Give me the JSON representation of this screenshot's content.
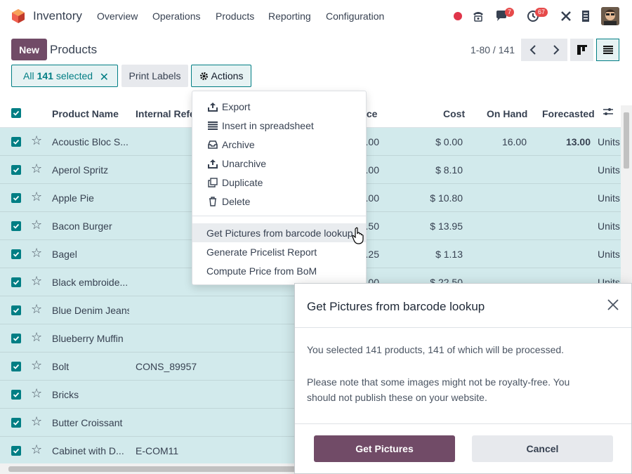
{
  "app": {
    "name": "Inventory",
    "menus": [
      "Overview",
      "Operations",
      "Products",
      "Reporting",
      "Configuration"
    ],
    "badges": {
      "chat": "7",
      "activity": "67"
    },
    "colors": {
      "brand": "#714b67",
      "accent": "#017e84",
      "selected_row": "#d2eaec"
    },
    "icons": [
      "status-dot-icon",
      "phone-icon",
      "chat-icon",
      "clock-icon",
      "tools-icon",
      "building-icon"
    ]
  },
  "control": {
    "new_label": "New",
    "title": "Products",
    "pager": "1-80 / 141",
    "selection_prefix": "All",
    "selection_count": "141",
    "selection_suffix": "selected",
    "print_label": "Print Labels",
    "actions_label": "Actions"
  },
  "table": {
    "headers": [
      "Product Name",
      "Internal Refe",
      "ice",
      "Cost",
      "On Hand",
      "Forecasted"
    ],
    "rows": [
      {
        "name": "Acoustic Bloc S...",
        "ref": "",
        "price": ".00",
        "cost": "$ 0.00",
        "onhand": "16.00",
        "forecast": "13.00",
        "uom": "Units"
      },
      {
        "name": "Aperol Spritz",
        "ref": "",
        "price": ".00",
        "cost": "$ 8.10",
        "onhand": "",
        "forecast": "",
        "uom": "Units"
      },
      {
        "name": "Apple Pie",
        "ref": "",
        "price": ".00",
        "cost": "$ 10.80",
        "onhand": "",
        "forecast": "",
        "uom": "Units"
      },
      {
        "name": "Bacon Burger",
        "ref": "",
        "price": ".50",
        "cost": "$ 13.95",
        "onhand": "",
        "forecast": "",
        "uom": "Units"
      },
      {
        "name": "Bagel",
        "ref": "",
        "price": ".25",
        "cost": "$ 1.13",
        "onhand": "",
        "forecast": "",
        "uom": "Units"
      },
      {
        "name": "Black embroide...",
        "ref": "",
        "price": ".00",
        "cost": "$ 22.50",
        "onhand": "",
        "forecast": "",
        "uom": "Units"
      },
      {
        "name": "Blue Denim Jeans",
        "ref": "",
        "price": "",
        "cost": "",
        "onhand": "",
        "forecast": "",
        "uom": ""
      },
      {
        "name": "Blueberry Muffin",
        "ref": "",
        "price": "",
        "cost": "",
        "onhand": "",
        "forecast": "",
        "uom": ""
      },
      {
        "name": "Bolt",
        "ref": "CONS_89957",
        "price": "",
        "cost": "",
        "onhand": "",
        "forecast": "",
        "uom": ""
      },
      {
        "name": "Bricks",
        "ref": "",
        "price": "",
        "cost": "",
        "onhand": "",
        "forecast": "",
        "uom": ""
      },
      {
        "name": "Butter Croissant",
        "ref": "",
        "price": "",
        "cost": "",
        "onhand": "",
        "forecast": "",
        "uom": ""
      },
      {
        "name": "Cabinet with D...",
        "ref": "E-COM11",
        "price": "",
        "cost": "",
        "onhand": "",
        "forecast": "",
        "uom": ""
      }
    ]
  },
  "actions_menu": {
    "items": [
      {
        "label": "Export",
        "icon": "upload-icon"
      },
      {
        "label": "Insert in spreadsheet",
        "icon": "list-icon"
      },
      {
        "label": "Archive",
        "icon": "inbox-icon"
      },
      {
        "label": "Unarchive",
        "icon": "unarchive-icon"
      },
      {
        "label": "Duplicate",
        "icon": "copy-icon"
      },
      {
        "label": "Delete",
        "icon": "trash-icon"
      }
    ],
    "extra": [
      "Get Pictures from barcode lookup",
      "Generate Pricelist Report",
      "Compute Price from BoM"
    ]
  },
  "dialog": {
    "title": "Get Pictures from barcode lookup",
    "line1": "You selected 141 products, 141 of which will be processed.",
    "line2": "Please note that some images might not be royalty-free. You",
    "line3": "should not publish these on your website.",
    "confirm": "Get Pictures",
    "cancel": "Cancel"
  }
}
